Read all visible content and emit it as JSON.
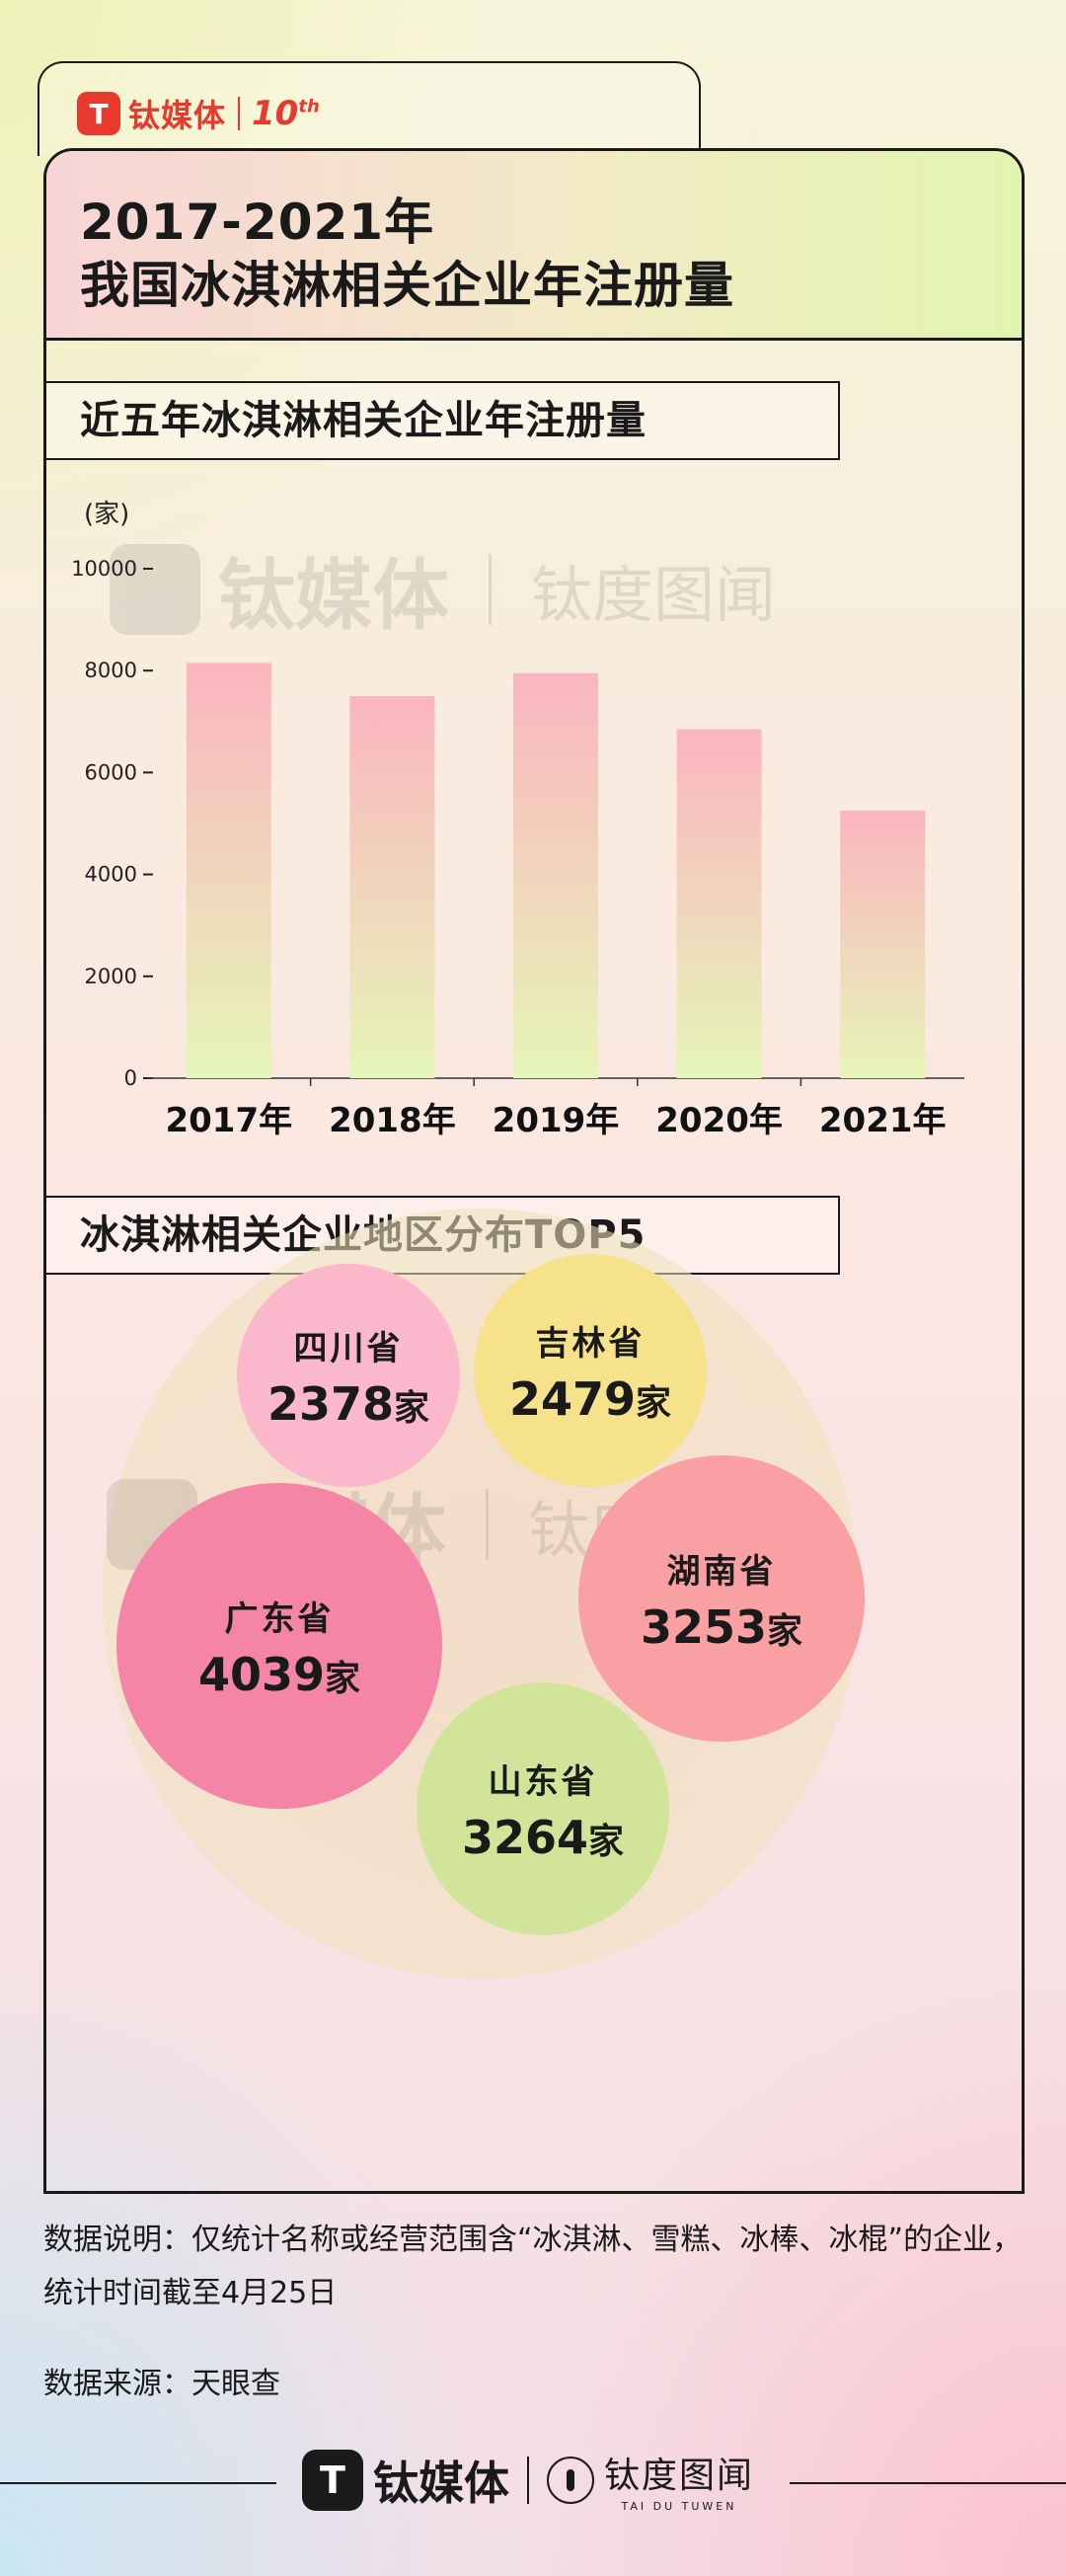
{
  "brand": {
    "logo_glyph": "T",
    "name": "钛媒体",
    "anniversary": "10",
    "anniversary_sup": "th"
  },
  "header": {
    "title_line1": "2017-2021年",
    "title_line2": "我国冰淇淋相关企业年注册量"
  },
  "section1": {
    "label": "近五年冰淇淋相关企业年注册量"
  },
  "section2": {
    "label": "冰淇淋相关企业地区分布TOP5"
  },
  "watermark": {
    "name": "钛媒体",
    "sub": "钛度图闻",
    "sub_en": "TAI DU TUWEN"
  },
  "chart_data": [
    {
      "type": "bar",
      "categories": [
        "2017年",
        "2018年",
        "2019年",
        "2020年",
        "2021年"
      ],
      "values": [
        8150,
        7500,
        7950,
        6850,
        5250
      ],
      "title": "近五年冰淇淋相关企业年注册量",
      "ylabel": "(家)",
      "ylim": [
        0,
        10000
      ],
      "yticks": [
        0,
        2000,
        4000,
        6000,
        8000,
        10000
      ],
      "bar_gradient": [
        "#fbb5bf",
        "#e6f5b8"
      ],
      "grid": false
    },
    {
      "type": "bubble",
      "title": "冰淇淋相关企业地区分布TOP5",
      "unit": "家",
      "items": [
        {
          "name": "四川省",
          "value": 2378,
          "color": "#fbb8cc"
        },
        {
          "name": "吉林省",
          "value": 2479,
          "color": "#f7e28c"
        },
        {
          "name": "湖南省",
          "value": 3253,
          "color": "#f9a0a2"
        },
        {
          "name": "广东省",
          "value": 4039,
          "color": "#f585a6"
        },
        {
          "name": "山东省",
          "value": 3264,
          "color": "#d2e39a"
        }
      ]
    }
  ],
  "notes": {
    "description": "数据说明：仅统计名称或经营范围含“冰淇淋、雪糕、冰棒、冰棍”的企业，统计时间截至4月25日",
    "source": "数据来源：天眼查"
  },
  "footer": {
    "logo_glyph": "T",
    "name": "钛媒体",
    "sub": "钛度图闻",
    "sub_en": "TAI DU TUWEN"
  }
}
